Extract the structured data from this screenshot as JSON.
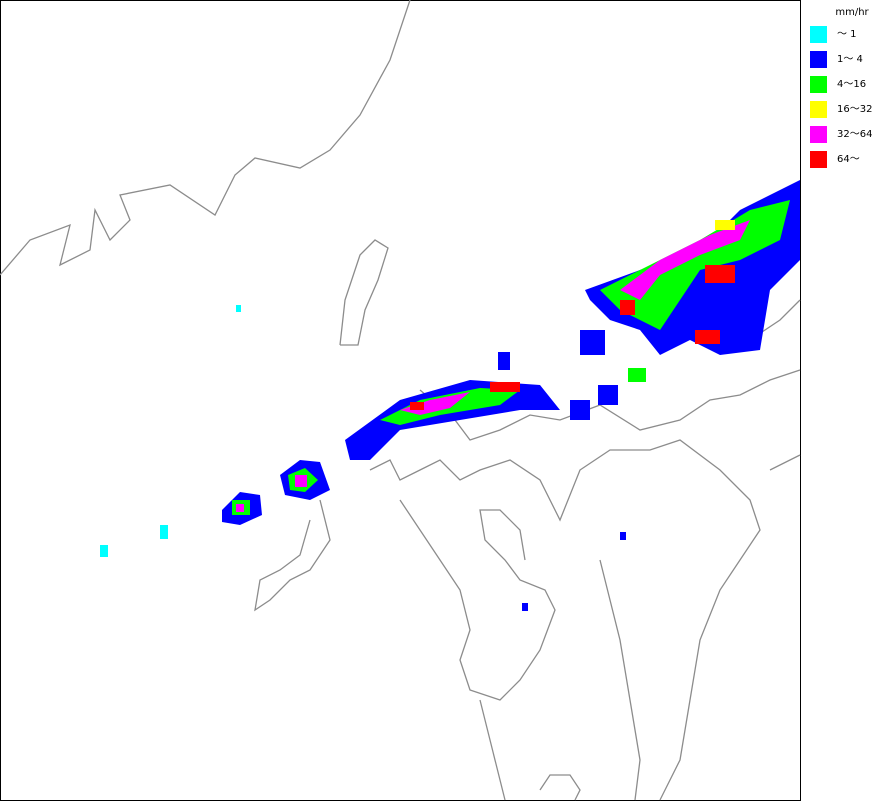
{
  "legend": {
    "unit": "mm/hr",
    "items": [
      {
        "label": "～ 1",
        "color": "#00ffff"
      },
      {
        "label": "1～ 4",
        "color": "#0000ff"
      },
      {
        "label": "4～16",
        "color": "#00ff00"
      },
      {
        "label": "16～32",
        "color": "#ffff00"
      },
      {
        "label": "32～64",
        "color": "#ff00ff"
      },
      {
        "label": "64～",
        "color": "#ff0000"
      }
    ]
  }
}
